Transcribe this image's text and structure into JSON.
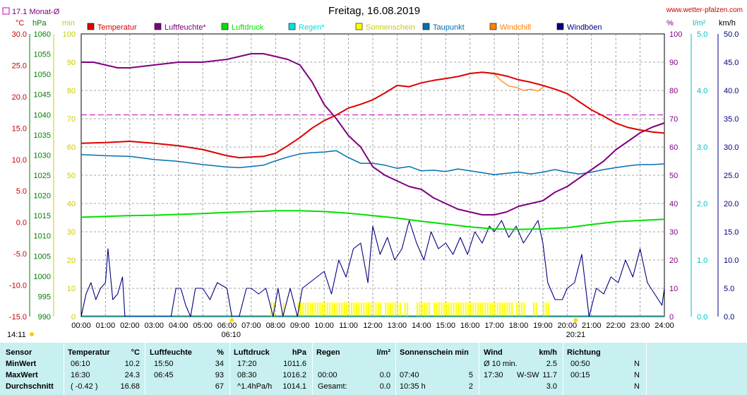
{
  "title": "Freitag, 16.08.2019",
  "site": "www.wetter-pfalzen.com",
  "month_avg_label": "17.1 Monat-Ø",
  "colors": {
    "temperature": "#dd0000",
    "humidity": "#800080",
    "pressure": "#00e000",
    "rain": "#00e0e0",
    "sunshine": "#ffff00",
    "dewpoint": "#0070b0",
    "windchill": "#ff8000",
    "gust": "#000080",
    "month_avg": "#c000c0",
    "stats_bg": "#c8f0f0"
  },
  "axis_units": {
    "temp": "°C",
    "pressure": "hPa",
    "min": "min",
    "percent": "%",
    "rain": "l/m²",
    "wind": "km/h"
  },
  "legend": [
    {
      "label": "Temperatur",
      "key": "temperature"
    },
    {
      "label": "Luftfeuchte*",
      "key": "humidity"
    },
    {
      "label": "Luftdruck",
      "key": "pressure"
    },
    {
      "label": "Regen*",
      "key": "rain"
    },
    {
      "label": "Sonnenschein",
      "key": "sunshine"
    },
    {
      "label": "Taupunkt",
      "key": "dewpoint"
    },
    {
      "label": "Windchill",
      "key": "windchill"
    },
    {
      "label": "Windböen",
      "key": "gust"
    }
  ],
  "sunrise": "06:10",
  "sunset": "20:21",
  "bottom_left_time": "14:11",
  "chart_data": {
    "type": "line",
    "x_ticks": [
      "00:00",
      "01:00",
      "02:00",
      "03:00",
      "04:00",
      "05:00",
      "06:00",
      "07:00",
      "08:00",
      "09:00",
      "10:00",
      "11:00",
      "12:00",
      "13:00",
      "14:00",
      "15:00",
      "16:00",
      "17:00",
      "18:00",
      "19:00",
      "20:00",
      "21:00",
      "22:00",
      "23:00",
      "24:00"
    ],
    "axes": {
      "temp": {
        "ylim": [
          -15,
          30
        ],
        "ticks": [
          "30.0",
          "25.0",
          "20.0",
          "15.0",
          "10.0",
          "5.0",
          "0.0",
          "-5.0",
          "-10.0",
          "-15.0"
        ]
      },
      "pressure": {
        "ylim": [
          990,
          1060
        ],
        "ticks": [
          "1060",
          "1055",
          "1050",
          "1045",
          "1040",
          "1035",
          "1030",
          "1025",
          "1020",
          "1015",
          "1010",
          "1005",
          "1000",
          "995",
          "990"
        ]
      },
      "min": {
        "ylim": [
          0,
          100
        ],
        "ticks": [
          "100",
          "90",
          "80",
          "70",
          "60",
          "50",
          "40",
          "30",
          "20",
          "10",
          "0"
        ]
      },
      "percent": {
        "ylim": [
          0,
          100
        ],
        "ticks": [
          "100",
          "90",
          "80",
          "70",
          "60",
          "50",
          "40",
          "30",
          "20",
          "10",
          "0"
        ]
      },
      "rain": {
        "ylim": [
          0,
          5
        ],
        "ticks": [
          "5.0",
          "4.0",
          "3.0",
          "2.0",
          "1.0",
          "0.0"
        ]
      },
      "wind": {
        "ylim": [
          0,
          50
        ],
        "ticks": [
          "50.0",
          "45.0",
          "40.0",
          "35.0",
          "30.0",
          "25.0",
          "20.0",
          "15.0",
          "10.0",
          "5.0",
          "0.0"
        ]
      }
    },
    "month_avg_temp": 17.1,
    "series": [
      {
        "name": "Temperatur",
        "axis": "temp",
        "x": [
          0,
          1,
          2,
          3,
          4,
          5,
          6,
          6.5,
          7,
          7.5,
          8,
          8.5,
          9,
          9.5,
          10,
          10.5,
          11,
          11.5,
          12,
          12.5,
          13,
          13.5,
          14,
          14.5,
          15,
          15.5,
          16,
          16.5,
          17,
          17.5,
          18,
          18.5,
          19,
          19.5,
          20,
          20.5,
          21,
          21.5,
          22,
          22.5,
          23,
          23.5,
          24
        ],
        "y": [
          12.6,
          12.7,
          12.9,
          12.6,
          12.2,
          11.6,
          10.6,
          10.3,
          10.4,
          10.5,
          11.0,
          12.2,
          13.5,
          15.0,
          16.2,
          17.1,
          18.2,
          18.8,
          19.5,
          20.6,
          21.8,
          21.6,
          22.2,
          22.6,
          22.9,
          23.2,
          23.7,
          23.9,
          23.7,
          23.3,
          22.7,
          22.3,
          21.8,
          21.2,
          20.5,
          19.2,
          17.9,
          16.9,
          15.8,
          15.1,
          14.7,
          14.4,
          14.2
        ]
      },
      {
        "name": "Windchill",
        "axis": "temp",
        "x": [
          16,
          16.5,
          17,
          17.3,
          17.6,
          17.9,
          18.2,
          18.5,
          18.8,
          19.1
        ],
        "y": [
          23.7,
          23.9,
          23.6,
          22.5,
          21.7,
          21.5,
          21.0,
          21.2,
          20.9,
          21.8
        ]
      },
      {
        "name": "Luftfeuchte*",
        "axis": "percent",
        "x": [
          0,
          0.5,
          1,
          1.5,
          2,
          3,
          4,
          5,
          6,
          6.5,
          7,
          7.5,
          8,
          8.5,
          9,
          9.5,
          10,
          10.5,
          11,
          11.5,
          12,
          12.5,
          13,
          13.5,
          14,
          14.5,
          15,
          15.5,
          16,
          16.5,
          17,
          17.5,
          18,
          18.5,
          19,
          19.5,
          20,
          20.5,
          21,
          21.5,
          22,
          22.5,
          23,
          23.5,
          24
        ],
        "y": [
          90,
          90,
          89,
          88,
          88,
          89,
          90,
          90,
          91,
          92,
          93,
          93,
          92,
          91,
          89,
          83,
          75,
          70,
          64,
          60,
          53,
          50,
          48,
          46,
          45,
          42,
          40,
          38,
          37,
          36,
          36,
          37,
          39,
          40,
          41,
          44,
          46,
          49,
          52,
          55,
          59,
          62,
          65,
          67,
          68.5
        ]
      },
      {
        "name": "Luftdruck",
        "axis": "pressure",
        "x": [
          0,
          1,
          2,
          3,
          4,
          5,
          6,
          7,
          8,
          9,
          10,
          11,
          12,
          13,
          14,
          15,
          16,
          17,
          18,
          19,
          20,
          21,
          22,
          23,
          24
        ],
        "y": [
          1014.6,
          1014.8,
          1015.0,
          1015.1,
          1015.3,
          1015.5,
          1015.8,
          1016.0,
          1016.2,
          1016.2,
          1016.0,
          1015.6,
          1015.0,
          1014.4,
          1013.6,
          1012.9,
          1012.2,
          1011.7,
          1011.6,
          1011.7,
          1012.0,
          1012.8,
          1013.5,
          1013.8,
          1014.1
        ]
      },
      {
        "name": "Taupunkt",
        "axis": "temp",
        "x": [
          0,
          1,
          2,
          3,
          4,
          5,
          6,
          6.5,
          7,
          7.5,
          8,
          8.5,
          9,
          9.5,
          10,
          10.5,
          11,
          11.5,
          12,
          12.5,
          13,
          13.5,
          14,
          14.5,
          15,
          15.5,
          16,
          16.5,
          17,
          17.5,
          18,
          18.5,
          19,
          19.5,
          20,
          20.5,
          21,
          21.5,
          22,
          22.5,
          23,
          23.5,
          24
        ],
        "y": [
          10.8,
          10.6,
          10.5,
          10.0,
          9.7,
          9.2,
          8.8,
          8.7,
          8.9,
          9.1,
          9.8,
          10.4,
          10.9,
          11.1,
          11.2,
          11.4,
          10.3,
          9.4,
          9.4,
          9.1,
          8.6,
          8.9,
          8.2,
          8.3,
          8.1,
          8.5,
          8.2,
          7.9,
          7.6,
          7.8,
          8.0,
          7.7,
          8.0,
          8.4,
          8.0,
          7.7,
          8.0,
          8.4,
          8.7,
          9.0,
          9.2,
          9.2,
          9.3
        ]
      },
      {
        "name": "Windböen",
        "axis": "wind",
        "x": [
          0,
          0.2,
          0.4,
          0.6,
          0.8,
          1.0,
          1.1,
          1.3,
          1.5,
          1.7,
          1.8,
          2.0,
          2.2,
          3.5,
          3.7,
          3.9,
          4.1,
          4.3,
          4.5,
          4.7,
          5.0,
          5.3,
          5.6,
          6.0,
          6.2,
          6.5,
          6.8,
          7.0,
          7.3,
          7.6,
          7.9,
          8.1,
          8.3,
          8.6,
          8.9,
          9.1,
          9.4,
          9.7,
          10.0,
          10.3,
          10.6,
          10.9,
          11.2,
          11.5,
          11.8,
          12.0,
          12.3,
          12.6,
          12.9,
          13.2,
          13.5,
          13.8,
          14.1,
          14.4,
          14.7,
          15.0,
          15.3,
          15.6,
          15.9,
          16.2,
          16.5,
          16.8,
          17.0,
          17.3,
          17.6,
          17.9,
          18.2,
          18.5,
          18.8,
          19.0,
          19.2,
          19.5,
          19.8,
          20.0,
          20.3,
          20.6,
          20.9,
          21.2,
          21.5,
          21.8,
          22.1,
          22.4,
          22.7,
          23.0,
          23.3,
          23.6,
          23.9,
          24.0
        ],
        "y": [
          0,
          4,
          6,
          3,
          5,
          6,
          12,
          3,
          4,
          7,
          0,
          0,
          0,
          0,
          0,
          5,
          5,
          2,
          0,
          5,
          5,
          3,
          6,
          5,
          0,
          0,
          5,
          5,
          4,
          5,
          0,
          5,
          0,
          5,
          0,
          5,
          6,
          7,
          8,
          4,
          10,
          7,
          12,
          13,
          6,
          16,
          11,
          14,
          10,
          12,
          17,
          13,
          10,
          15,
          12,
          13,
          11,
          14,
          11,
          15,
          13,
          16,
          15,
          17,
          14,
          16,
          13,
          15,
          17,
          13,
          6,
          3,
          3,
          5,
          6,
          11,
          0,
          5,
          4,
          7,
          6,
          10,
          7,
          12,
          6,
          4,
          2,
          5
        ]
      }
    ],
    "sunshine_intervals": [
      [
        7.8,
        7.95
      ],
      [
        8.3,
        8.4
      ],
      [
        8.9,
        12.3
      ],
      [
        12.5,
        13.1
      ],
      [
        13.3,
        13.5
      ],
      [
        13.8,
        14.3
      ],
      [
        14.5,
        17.8
      ],
      [
        17.9,
        18.3
      ],
      [
        18.6,
        18.8
      ],
      [
        19.0,
        19.3
      ]
    ],
    "tooltip_dots_hours": [
      6.2,
      20.35
    ]
  },
  "stats": {
    "headers": {
      "sensor": "Sensor",
      "temp": "Temperatur",
      "temp_unit": "°C",
      "hum": "Luftfeuchte",
      "hum_unit": "%",
      "press": "Luftdruck",
      "press_unit": "hPa",
      "rain": "Regen",
      "rain_unit": "l/m²",
      "sun": "Sonnenschein min",
      "wind": "Wind",
      "wind_unit": "km/h",
      "dir": "Richtung"
    },
    "rows": [
      {
        "label": "MinWert",
        "temp_time": "06:10",
        "temp_val": "10.2",
        "hum_time": "15:50",
        "hum_val": "34",
        "press_time": "17:20",
        "press_val": "1011.6",
        "rain_time": "",
        "rain_val": "",
        "sun_time": "",
        "sun_val": "",
        "wind_time": "Ø 10 min.",
        "wind_dir": "",
        "wind_val": "2.5",
        "dir_time": "00:50",
        "dir_val": "N"
      },
      {
        "label": "MaxWert",
        "temp_time": "16:30",
        "temp_val": "24.3",
        "hum_time": "06:45",
        "hum_val": "93",
        "press_time": "08:30",
        "press_val": "1016.2",
        "rain_time": "00:00",
        "rain_val": "0.0",
        "sun_time": "07:40",
        "sun_val": "5",
        "wind_time": "17:30",
        "wind_dir": "W-SW",
        "wind_val": "11.7",
        "dir_time": "00:15",
        "dir_val": "N"
      },
      {
        "label": "Durchschnitt",
        "temp_time": "( -0.42 )",
        "temp_val": "16.68",
        "hum_time": "",
        "hum_val": "67",
        "press_time": "^1.4hPa/h",
        "press_val": "1014.1",
        "rain_time": "Gesamt:",
        "rain_val": "0.0",
        "sun_time": "10:35 h",
        "sun_val": "2",
        "wind_time": "",
        "wind_dir": "",
        "wind_val": "3.0",
        "dir_time": "",
        "dir_val": "N"
      }
    ]
  }
}
